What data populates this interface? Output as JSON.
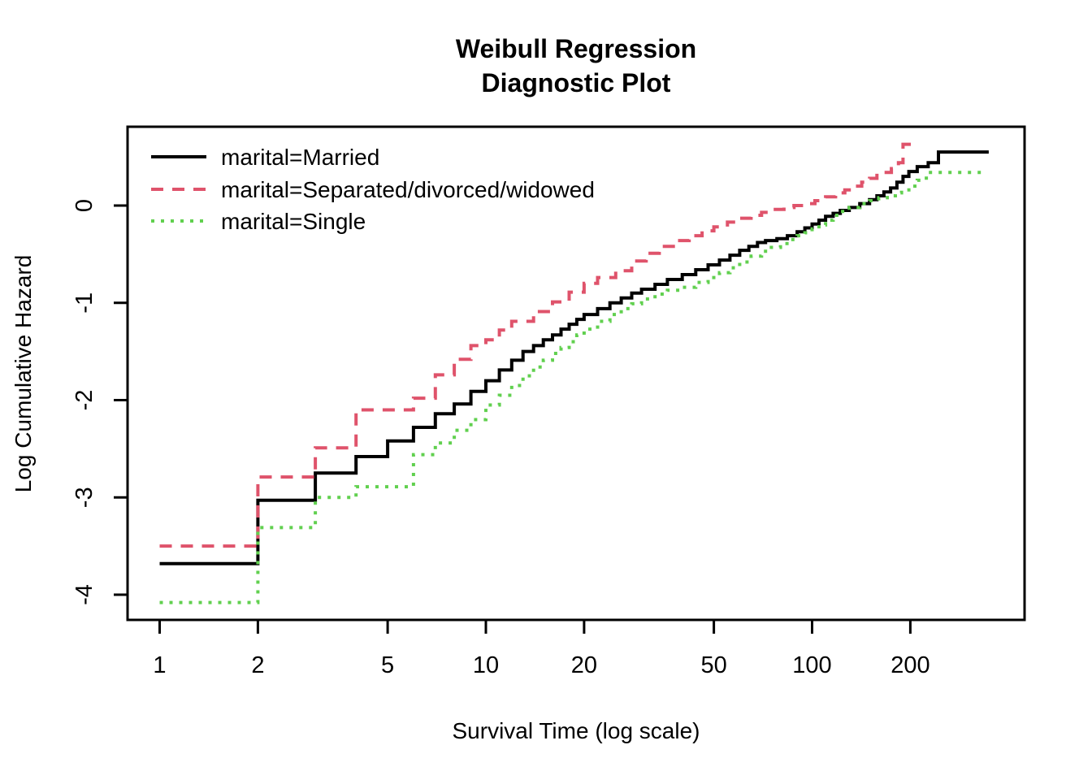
{
  "chart_data": {
    "type": "line",
    "subtype": "step-function-survival",
    "title_lines": [
      "Weibull Regression",
      "Diagnostic Plot"
    ],
    "xlabel": "Survival Time (log scale)",
    "ylabel": "Log Cumulative Hazard",
    "x_scale": "log10",
    "x_ticks": [
      1,
      2,
      5,
      10,
      20,
      50,
      100,
      200
    ],
    "y_ticks": [
      0,
      -1,
      -2,
      -3,
      -4
    ],
    "xlim": [
      0.8,
      430
    ],
    "ylim": [
      -4.26,
      0.81
    ],
    "grid": false,
    "legend_position": "top-left",
    "legend_box": "none",
    "series": [
      {
        "name": "marital=Married",
        "color": "#000000",
        "line_style": "solid",
        "end_t": 348,
        "points": [
          [
            1,
            -3.68
          ],
          [
            2,
            -3.03
          ],
          [
            3,
            -2.75
          ],
          [
            4,
            -2.58
          ],
          [
            5,
            -2.42
          ],
          [
            6,
            -2.28
          ],
          [
            7,
            -2.14
          ],
          [
            8,
            -2.04
          ],
          [
            9,
            -1.91
          ],
          [
            10,
            -1.8
          ],
          [
            11,
            -1.69
          ],
          [
            12,
            -1.59
          ],
          [
            13,
            -1.5
          ],
          [
            14,
            -1.44
          ],
          [
            15,
            -1.38
          ],
          [
            16,
            -1.33
          ],
          [
            17,
            -1.27
          ],
          [
            18,
            -1.22
          ],
          [
            19,
            -1.17
          ],
          [
            20,
            -1.12
          ],
          [
            22,
            -1.06
          ],
          [
            24,
            -1.0
          ],
          [
            26,
            -0.95
          ],
          [
            28,
            -0.9
          ],
          [
            30,
            -0.86
          ],
          [
            33,
            -0.81
          ],
          [
            36,
            -0.76
          ],
          [
            40,
            -0.71
          ],
          [
            44,
            -0.66
          ],
          [
            48,
            -0.61
          ],
          [
            52,
            -0.56
          ],
          [
            56,
            -0.51
          ],
          [
            60,
            -0.46
          ],
          [
            64,
            -0.42
          ],
          [
            68,
            -0.38
          ],
          [
            72,
            -0.36
          ],
          [
            78,
            -0.34
          ],
          [
            84,
            -0.31
          ],
          [
            90,
            -0.27
          ],
          [
            95,
            -0.23
          ],
          [
            100,
            -0.19
          ],
          [
            105,
            -0.15
          ],
          [
            110,
            -0.11
          ],
          [
            116,
            -0.08
          ],
          [
            122,
            -0.05
          ],
          [
            130,
            -0.02
          ],
          [
            140,
            0.02
          ],
          [
            150,
            0.06
          ],
          [
            158,
            0.1
          ],
          [
            166,
            0.14
          ],
          [
            174,
            0.18
          ],
          [
            182,
            0.24
          ],
          [
            190,
            0.3
          ],
          [
            198,
            0.35
          ],
          [
            210,
            0.4
          ],
          [
            227,
            0.44
          ],
          [
            244,
            0.55
          ]
        ]
      },
      {
        "name": "marital=Separated/divorced/widowed",
        "color": "#DF536B",
        "line_style": "dashed",
        "end_t": 211,
        "points": [
          [
            1,
            -3.5
          ],
          [
            2,
            -2.79
          ],
          [
            3,
            -2.49
          ],
          [
            4,
            -2.1
          ],
          [
            6,
            -1.98
          ],
          [
            7,
            -1.74
          ],
          [
            8,
            -1.58
          ],
          [
            9,
            -1.44
          ],
          [
            10,
            -1.38
          ],
          [
            11,
            -1.28
          ],
          [
            12,
            -1.19
          ],
          [
            14,
            -1.09
          ],
          [
            16,
            -0.99
          ],
          [
            18,
            -0.89
          ],
          [
            20,
            -0.8
          ],
          [
            22,
            -0.74
          ],
          [
            25,
            -0.67
          ],
          [
            28,
            -0.57
          ],
          [
            31,
            -0.49
          ],
          [
            34,
            -0.42
          ],
          [
            38,
            -0.36
          ],
          [
            42,
            -0.31
          ],
          [
            46,
            -0.26
          ],
          [
            50,
            -0.22
          ],
          [
            55,
            -0.17
          ],
          [
            60,
            -0.13
          ],
          [
            65,
            -0.1
          ],
          [
            70,
            -0.07
          ],
          [
            76,
            -0.04
          ],
          [
            82,
            -0.02
          ],
          [
            88,
            0.0
          ],
          [
            95,
            0.02
          ],
          [
            102,
            0.05
          ],
          [
            110,
            0.09
          ],
          [
            118,
            0.13
          ],
          [
            126,
            0.16
          ],
          [
            134,
            0.2
          ],
          [
            142,
            0.24
          ],
          [
            150,
            0.28
          ],
          [
            158,
            0.31
          ],
          [
            166,
            0.34
          ],
          [
            175,
            0.38
          ],
          [
            184,
            0.44
          ],
          [
            190,
            0.63
          ]
        ]
      },
      {
        "name": "marital=Single",
        "color": "#61D04F",
        "line_style": "dotted",
        "end_t": 334,
        "points": [
          [
            1,
            -4.08
          ],
          [
            2,
            -3.31
          ],
          [
            3,
            -3.0
          ],
          [
            4,
            -2.89
          ],
          [
            6,
            -2.56
          ],
          [
            7,
            -2.44
          ],
          [
            8,
            -2.31
          ],
          [
            9,
            -2.2
          ],
          [
            10,
            -2.05
          ],
          [
            11,
            -1.95
          ],
          [
            12,
            -1.85
          ],
          [
            13,
            -1.75
          ],
          [
            14,
            -1.66
          ],
          [
            15,
            -1.59
          ],
          [
            16,
            -1.52
          ],
          [
            17,
            -1.46
          ],
          [
            18,
            -1.4
          ],
          [
            19,
            -1.33
          ],
          [
            20,
            -1.27
          ],
          [
            22,
            -1.19
          ],
          [
            24,
            -1.12
          ],
          [
            26,
            -1.06
          ],
          [
            28,
            -1.01
          ],
          [
            30,
            -0.96
          ],
          [
            33,
            -0.91
          ],
          [
            36,
            -0.87
          ],
          [
            40,
            -0.84
          ],
          [
            44,
            -0.79
          ],
          [
            48,
            -0.74
          ],
          [
            52,
            -0.69
          ],
          [
            56,
            -0.64
          ],
          [
            60,
            -0.58
          ],
          [
            65,
            -0.52
          ],
          [
            70,
            -0.47
          ],
          [
            75,
            -0.43
          ],
          [
            80,
            -0.39
          ],
          [
            85,
            -0.35
          ],
          [
            90,
            -0.31
          ],
          [
            95,
            -0.28
          ],
          [
            100,
            -0.24
          ],
          [
            105,
            -0.2
          ],
          [
            110,
            -0.15
          ],
          [
            116,
            -0.1
          ],
          [
            122,
            -0.06
          ],
          [
            130,
            -0.02
          ],
          [
            140,
            0.02
          ],
          [
            150,
            0.05
          ],
          [
            160,
            0.08
          ],
          [
            170,
            0.1
          ],
          [
            180,
            0.13
          ],
          [
            188,
            0.16
          ],
          [
            198,
            0.2
          ],
          [
            210,
            0.26
          ],
          [
            224,
            0.34
          ]
        ]
      }
    ]
  }
}
